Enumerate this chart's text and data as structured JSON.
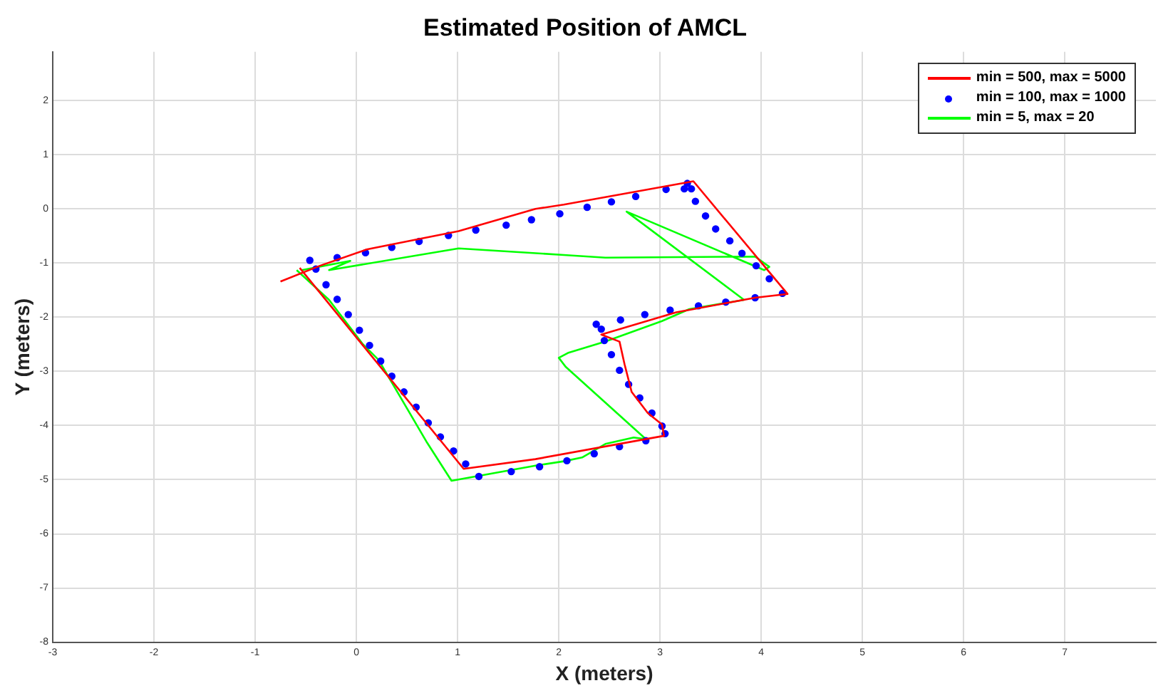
{
  "chart_data": {
    "type": "line",
    "title": "Estimated Position of AMCL",
    "xlabel": "X (meters)",
    "ylabel": "Y (meters)",
    "xlim": [
      -3,
      7.9
    ],
    "xticks": [
      -3,
      -2,
      -1,
      0,
      1,
      2,
      3,
      4,
      5,
      6,
      7
    ],
    "ylim": [
      -8,
      2.9
    ],
    "yticks": [
      -8,
      -7,
      -6,
      -5,
      -4,
      -3,
      -2,
      -1,
      0,
      1,
      2
    ],
    "grid": true,
    "legend": "top right",
    "series": [
      {
        "name": "min = 500, max = 5000",
        "marker": "none",
        "color": "#ff0000",
        "x": [
          -0.75,
          -0.36,
          0.1,
          1.01,
          1.77,
          2.05,
          3.33,
          4.26,
          3.94,
          3.16,
          2.42,
          2.6,
          2.65,
          2.72,
          2.88,
          3.02,
          3.04,
          1.77,
          1.06,
          -0.56
        ],
        "values": [
          -1.34,
          -1.05,
          -0.75,
          -0.41,
          0.0,
          0.08,
          0.51,
          -1.57,
          -1.64,
          -1.91,
          -2.32,
          -2.45,
          -2.87,
          -3.38,
          -3.77,
          -3.98,
          -4.19,
          -4.62,
          -4.8,
          -1.09
        ]
      },
      {
        "name": "min = 100, max = 1000",
        "type": "scatter",
        "marker": "circle",
        "color": "#0000ff",
        "x": [
          -0.46,
          -0.4,
          -0.19,
          -0.3,
          -0.19,
          -0.08,
          0.03,
          0.13,
          0.24,
          0.35,
          0.47,
          0.59,
          0.71,
          0.83,
          0.96,
          1.08,
          1.21,
          1.53,
          1.81,
          0.09,
          0.35,
          0.62,
          0.91,
          1.18,
          1.48,
          1.73,
          2.01,
          2.28,
          2.52,
          2.76,
          3.06,
          3.24,
          3.27,
          3.31,
          3.35,
          3.45,
          3.55,
          3.69,
          3.81,
          3.95,
          4.08,
          4.21,
          3.94,
          3.65,
          3.38,
          3.1,
          2.85,
          2.61,
          2.37,
          2.42,
          2.45,
          2.52,
          2.6,
          2.69,
          2.8,
          2.92,
          3.02,
          3.05,
          2.86,
          2.6,
          2.35,
          2.08
        ],
        "values": [
          -0.95,
          -1.11,
          -0.9,
          -1.4,
          -1.67,
          -1.95,
          -2.24,
          -2.52,
          -2.81,
          -3.09,
          -3.38,
          -3.66,
          -3.95,
          -4.21,
          -4.47,
          -4.71,
          -4.94,
          -4.85,
          -4.76,
          -0.81,
          -0.71,
          -0.6,
          -0.49,
          -0.39,
          -0.3,
          -0.2,
          -0.09,
          0.03,
          0.13,
          0.23,
          0.36,
          0.37,
          0.47,
          0.37,
          0.14,
          -0.13,
          -0.37,
          -0.59,
          -0.82,
          -1.05,
          -1.29,
          -1.56,
          -1.64,
          -1.72,
          -1.79,
          -1.87,
          -1.95,
          -2.05,
          -2.13,
          -2.22,
          -2.43,
          -2.69,
          -2.98,
          -3.24,
          -3.49,
          -3.77,
          -4.01,
          -4.15,
          -4.28,
          -4.39,
          -4.52,
          -4.65
        ]
      },
      {
        "name": "min = 5, max = 20",
        "marker": "none",
        "color": "#00ff00",
        "x": [
          -0.54,
          -0.06,
          -0.27,
          1.01,
          2.05,
          2.46,
          3.94,
          4.08,
          4.03,
          2.67,
          3.83,
          3.29,
          3.02,
          2.46,
          2.09,
          2.0,
          2.07,
          2.86,
          2.74,
          2.46,
          2.23,
          2.05,
          1.77,
          0.94,
          0.7,
          0.22,
          0.06,
          -0.27,
          -0.59
        ],
        "values": [
          -1.13,
          -0.96,
          -1.13,
          -0.73,
          -0.85,
          -0.9,
          -0.88,
          -1.07,
          -1.13,
          -0.05,
          -1.68,
          -1.85,
          -2.07,
          -2.45,
          -2.66,
          -2.75,
          -2.92,
          -4.25,
          -4.22,
          -4.34,
          -4.59,
          -4.66,
          -4.74,
          -5.02,
          -4.32,
          -2.79,
          -2.49,
          -1.68,
          -1.13
        ]
      }
    ]
  }
}
